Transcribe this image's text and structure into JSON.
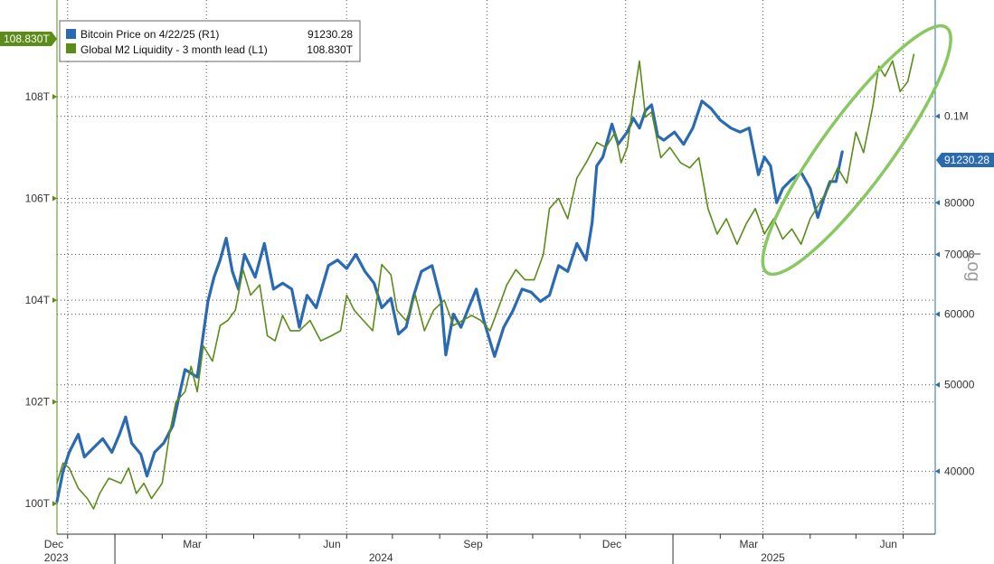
{
  "chart_data": {
    "type": "line",
    "title": "",
    "legend": {
      "placement": "top-left",
      "entries": [
        {
          "label": "Bitcoin Price on 4/22/25 (R1)",
          "value": "91230.28",
          "color": "#2a6ab0"
        },
        {
          "label": "Global M2 Liquidity - 3 month lead (L1)",
          "value": "108.830T",
          "color": "#5b8c1a"
        }
      ]
    },
    "left_axis": {
      "unit": "trillions USD",
      "ylim": [
        99.4,
        109.9
      ],
      "ticks": [
        {
          "value": 100,
          "label": "100T"
        },
        {
          "value": 102,
          "label": "102T"
        },
        {
          "value": 104,
          "label": "104T"
        },
        {
          "value": 106,
          "label": "106T"
        },
        {
          "value": 108,
          "label": "108T"
        }
      ],
      "last_value_badge": "108.830T"
    },
    "right_axis": {
      "scale": "log",
      "title": "Log",
      "ylim": [
        34000,
        135000
      ],
      "ticks": [
        {
          "value": 40000,
          "label": "40000"
        },
        {
          "value": 50000,
          "label": "50000"
        },
        {
          "value": 60000,
          "label": "60000"
        },
        {
          "value": 70000,
          "label": "70000"
        },
        {
          "value": 80000,
          "label": "80000"
        },
        {
          "value": 100000,
          "label": "0.1M"
        }
      ],
      "last_value_badge": "91230.28"
    },
    "x_axis": {
      "range": [
        "2023-11-24",
        "2025-06-22"
      ],
      "month_ticks": [
        {
          "date": "2023-12-01",
          "label": "Dec"
        },
        {
          "date": "2024-03-01",
          "label": "Mar"
        },
        {
          "date": "2024-06-01",
          "label": "Jun"
        },
        {
          "date": "2024-09-01",
          "label": "Sep"
        },
        {
          "date": "2024-12-01",
          "label": "Dec"
        },
        {
          "date": "2025-03-01",
          "label": "Mar"
        },
        {
          "date": "2025-06-01",
          "label": "Jun"
        }
      ],
      "year_labels": [
        {
          "date": "2023-12-01",
          "label": "2023"
        },
        {
          "date": "2024-07-01",
          "label": "2024"
        },
        {
          "date": "2025-03-15",
          "label": "2025"
        }
      ],
      "year_separators": [
        "2024-01-01",
        "2025-01-01"
      ]
    },
    "grid": true,
    "series": [
      {
        "name": "Global M2 Liquidity - 3 month lead (L1)",
        "axis": "left",
        "color": "#5b8c1a",
        "points": [
          [
            "2023-11-24",
            100.4
          ],
          [
            "2023-11-28",
            100.8
          ],
          [
            "2023-12-02",
            100.7
          ],
          [
            "2023-12-08",
            100.3
          ],
          [
            "2023-12-14",
            100.1
          ],
          [
            "2023-12-18",
            99.9
          ],
          [
            "2023-12-22",
            100.2
          ],
          [
            "2023-12-28",
            100.5
          ],
          [
            "2024-01-05",
            100.4
          ],
          [
            "2024-01-10",
            100.7
          ],
          [
            "2024-01-15",
            100.2
          ],
          [
            "2024-01-20",
            100.4
          ],
          [
            "2024-01-25",
            100.1
          ],
          [
            "2024-02-01",
            100.4
          ],
          [
            "2024-02-06",
            101.4
          ],
          [
            "2024-02-10",
            102.0
          ],
          [
            "2024-02-16",
            102.2
          ],
          [
            "2024-02-20",
            102.7
          ],
          [
            "2024-02-24",
            102.2
          ],
          [
            "2024-02-28",
            103.1
          ],
          [
            "2024-03-05",
            102.8
          ],
          [
            "2024-03-10",
            103.5
          ],
          [
            "2024-03-15",
            103.6
          ],
          [
            "2024-03-20",
            103.8
          ],
          [
            "2024-03-25",
            104.6
          ],
          [
            "2024-03-30",
            104.1
          ],
          [
            "2024-04-05",
            104.3
          ],
          [
            "2024-04-10",
            103.3
          ],
          [
            "2024-04-15",
            103.2
          ],
          [
            "2024-04-20",
            103.7
          ],
          [
            "2024-04-25",
            103.4
          ],
          [
            "2024-05-01",
            103.4
          ],
          [
            "2024-05-08",
            103.6
          ],
          [
            "2024-05-15",
            103.2
          ],
          [
            "2024-05-22",
            103.3
          ],
          [
            "2024-05-28",
            103.4
          ],
          [
            "2024-06-01",
            104.1
          ],
          [
            "2024-06-06",
            103.8
          ],
          [
            "2024-06-12",
            103.6
          ],
          [
            "2024-06-18",
            103.4
          ],
          [
            "2024-06-24",
            104.7
          ],
          [
            "2024-06-30",
            104.5
          ],
          [
            "2024-07-04",
            103.8
          ],
          [
            "2024-07-10",
            103.6
          ],
          [
            "2024-07-16",
            104.1
          ],
          [
            "2024-07-22",
            103.4
          ],
          [
            "2024-07-28",
            103.8
          ],
          [
            "2024-08-04",
            104.0
          ],
          [
            "2024-08-10",
            103.5
          ],
          [
            "2024-08-16",
            103.6
          ],
          [
            "2024-08-22",
            103.7
          ],
          [
            "2024-08-28",
            103.6
          ],
          [
            "2024-09-03",
            103.4
          ],
          [
            "2024-09-08",
            103.8
          ],
          [
            "2024-09-14",
            104.3
          ],
          [
            "2024-09-20",
            104.6
          ],
          [
            "2024-09-26",
            104.4
          ],
          [
            "2024-10-02",
            104.4
          ],
          [
            "2024-10-08",
            104.9
          ],
          [
            "2024-10-12",
            105.8
          ],
          [
            "2024-10-18",
            106.0
          ],
          [
            "2024-10-24",
            105.6
          ],
          [
            "2024-10-30",
            106.4
          ],
          [
            "2024-11-05",
            106.7
          ],
          [
            "2024-11-12",
            107.1
          ],
          [
            "2024-11-18",
            107.0
          ],
          [
            "2024-11-24",
            107.3
          ],
          [
            "2024-11-28",
            106.7
          ],
          [
            "2024-12-02",
            107.0
          ],
          [
            "2024-12-06",
            107.9
          ],
          [
            "2024-12-10",
            108.7
          ],
          [
            "2024-12-14",
            107.6
          ],
          [
            "2024-12-18",
            107.7
          ],
          [
            "2024-12-24",
            106.8
          ],
          [
            "2024-12-30",
            107.0
          ],
          [
            "2025-01-06",
            106.7
          ],
          [
            "2025-01-12",
            106.6
          ],
          [
            "2025-01-18",
            106.8
          ],
          [
            "2025-01-24",
            105.8
          ],
          [
            "2025-01-30",
            105.3
          ],
          [
            "2025-02-05",
            105.6
          ],
          [
            "2025-02-12",
            105.1
          ],
          [
            "2025-02-18",
            105.5
          ],
          [
            "2025-02-24",
            105.8
          ],
          [
            "2025-03-02",
            105.3
          ],
          [
            "2025-03-08",
            105.6
          ],
          [
            "2025-03-14",
            105.2
          ],
          [
            "2025-03-20",
            105.4
          ],
          [
            "2025-03-26",
            105.1
          ],
          [
            "2025-04-01",
            105.6
          ],
          [
            "2025-04-07",
            105.9
          ],
          [
            "2025-04-13",
            106.2
          ],
          [
            "2025-04-19",
            106.6
          ],
          [
            "2025-04-25",
            106.3
          ],
          [
            "2025-05-01",
            107.3
          ],
          [
            "2025-05-06",
            106.9
          ],
          [
            "2025-05-12",
            107.8
          ],
          [
            "2025-05-16",
            108.6
          ],
          [
            "2025-05-20",
            108.4
          ],
          [
            "2025-05-25",
            108.7
          ],
          [
            "2025-05-30",
            108.1
          ],
          [
            "2025-06-04",
            108.3
          ],
          [
            "2025-06-08",
            108.83
          ]
        ]
      },
      {
        "name": "Bitcoin Price on 4/22/25 (R1)",
        "axis": "right",
        "color": "#2a6ab0",
        "points": [
          [
            "2023-11-24",
            37000
          ],
          [
            "2023-11-28",
            40000
          ],
          [
            "2023-12-02",
            42000
          ],
          [
            "2023-12-08",
            44000
          ],
          [
            "2023-12-12",
            41500
          ],
          [
            "2023-12-18",
            42500
          ],
          [
            "2023-12-24",
            43500
          ],
          [
            "2023-12-30",
            42000
          ],
          [
            "2024-01-04",
            44000
          ],
          [
            "2024-01-08",
            46000
          ],
          [
            "2024-01-12",
            43000
          ],
          [
            "2024-01-18",
            41800
          ],
          [
            "2024-01-22",
            39500
          ],
          [
            "2024-01-27",
            42000
          ],
          [
            "2024-02-02",
            43000
          ],
          [
            "2024-02-08",
            45000
          ],
          [
            "2024-02-12",
            48500
          ],
          [
            "2024-02-16",
            52000
          ],
          [
            "2024-02-20",
            51500
          ],
          [
            "2024-02-24",
            51000
          ],
          [
            "2024-02-28",
            57000
          ],
          [
            "2024-03-02",
            62000
          ],
          [
            "2024-03-06",
            66000
          ],
          [
            "2024-03-10",
            69000
          ],
          [
            "2024-03-14",
            73000
          ],
          [
            "2024-03-18",
            67000
          ],
          [
            "2024-03-22",
            64000
          ],
          [
            "2024-03-26",
            70000
          ],
          [
            "2024-04-02",
            66000
          ],
          [
            "2024-04-08",
            72000
          ],
          [
            "2024-04-14",
            64000
          ],
          [
            "2024-04-20",
            65000
          ],
          [
            "2024-04-26",
            64000
          ],
          [
            "2024-05-01",
            58000
          ],
          [
            "2024-05-06",
            63000
          ],
          [
            "2024-05-12",
            61000
          ],
          [
            "2024-05-20",
            68000
          ],
          [
            "2024-05-26",
            69000
          ],
          [
            "2024-06-01",
            67500
          ],
          [
            "2024-06-07",
            70000
          ],
          [
            "2024-06-13",
            67000
          ],
          [
            "2024-06-19",
            65000
          ],
          [
            "2024-06-24",
            61000
          ],
          [
            "2024-06-30",
            62500
          ],
          [
            "2024-07-05",
            57000
          ],
          [
            "2024-07-10",
            58000
          ],
          [
            "2024-07-15",
            63000
          ],
          [
            "2024-07-20",
            67000
          ],
          [
            "2024-07-27",
            68000
          ],
          [
            "2024-08-02",
            62000
          ],
          [
            "2024-08-05",
            54000
          ],
          [
            "2024-08-10",
            60000
          ],
          [
            "2024-08-15",
            58000
          ],
          [
            "2024-08-20",
            61000
          ],
          [
            "2024-08-25",
            64000
          ],
          [
            "2024-08-30",
            59000
          ],
          [
            "2024-09-06",
            53800
          ],
          [
            "2024-09-12",
            58000
          ],
          [
            "2024-09-18",
            60500
          ],
          [
            "2024-09-24",
            64000
          ],
          [
            "2024-09-30",
            63500
          ],
          [
            "2024-10-06",
            62000
          ],
          [
            "2024-10-12",
            63000
          ],
          [
            "2024-10-18",
            68000
          ],
          [
            "2024-10-24",
            67000
          ],
          [
            "2024-10-30",
            72000
          ],
          [
            "2024-11-05",
            69000
          ],
          [
            "2024-11-09",
            76000
          ],
          [
            "2024-11-12",
            88000
          ],
          [
            "2024-11-16",
            90000
          ],
          [
            "2024-11-22",
            98000
          ],
          [
            "2024-11-26",
            93000
          ],
          [
            "2024-12-02",
            96000
          ],
          [
            "2024-12-06",
            99500
          ],
          [
            "2024-12-10",
            97000
          ],
          [
            "2024-12-14",
            101500
          ],
          [
            "2024-12-18",
            103000
          ],
          [
            "2024-12-22",
            95000
          ],
          [
            "2024-12-26",
            94000
          ],
          [
            "2025-01-02",
            96000
          ],
          [
            "2025-01-08",
            93000
          ],
          [
            "2025-01-14",
            97000
          ],
          [
            "2025-01-20",
            104000
          ],
          [
            "2025-01-26",
            102000
          ],
          [
            "2025-02-01",
            99000
          ],
          [
            "2025-02-08",
            97000
          ],
          [
            "2025-02-14",
            96000
          ],
          [
            "2025-02-20",
            97000
          ],
          [
            "2025-02-26",
            86000
          ],
          [
            "2025-03-02",
            90000
          ],
          [
            "2025-03-06",
            88000
          ],
          [
            "2025-03-10",
            80000
          ],
          [
            "2025-03-14",
            83000
          ],
          [
            "2025-03-20",
            85000
          ],
          [
            "2025-03-26",
            86500
          ],
          [
            "2025-04-01",
            83000
          ],
          [
            "2025-04-06",
            77000
          ],
          [
            "2025-04-10",
            81000
          ],
          [
            "2025-04-14",
            84500
          ],
          [
            "2025-04-18",
            84500
          ],
          [
            "2025-04-22",
            91230.28
          ]
        ]
      }
    ],
    "annotations": [
      {
        "type": "ellipse",
        "color": "#88c860",
        "date_range": [
          "2025-03-05",
          "2025-06-28"
        ],
        "value_range_left": [
          104.6,
          109.3
        ]
      }
    ]
  }
}
